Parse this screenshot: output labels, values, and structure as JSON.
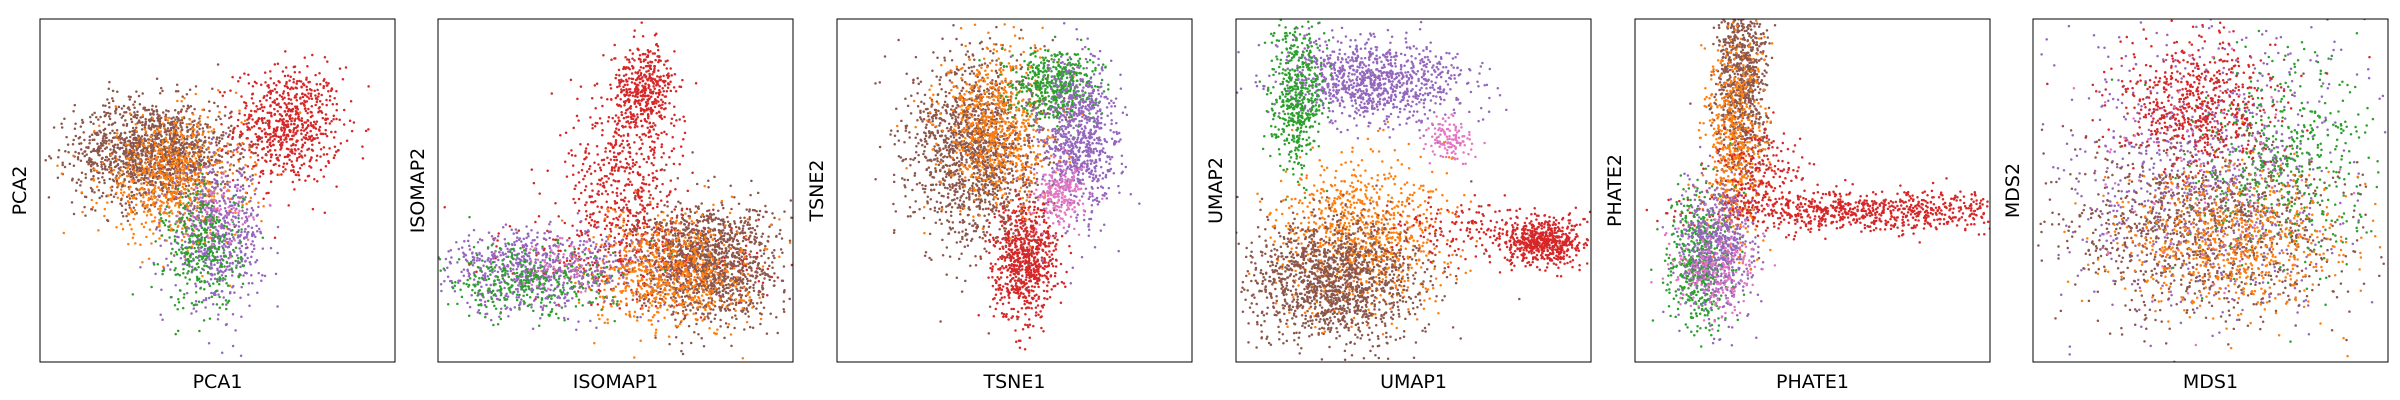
{
  "chart_data": [
    {
      "type": "scatter",
      "xlabel": "PCA1",
      "ylabel": "PCA2",
      "xlim": [
        0,
        10
      ],
      "ylim": [
        0,
        10
      ],
      "grid": false,
      "ticks": false,
      "series": [
        {
          "color": "#d62728",
          "clusters": [
            {
              "cx": 7.0,
              "cy": 6.9,
              "sx": 0.75,
              "sy": 0.85,
              "n": 700
            }
          ]
        },
        {
          "color": "#8c564b",
          "clusters": [
            {
              "cx": 3.2,
              "cy": 6.1,
              "sx": 1.1,
              "sy": 0.75,
              "n": 1500
            }
          ]
        },
        {
          "color": "#ff7f0e",
          "clusters": [
            {
              "cx": 3.7,
              "cy": 5.3,
              "sx": 1.0,
              "sy": 0.9,
              "n": 700
            }
          ]
        },
        {
          "color": "#9467bd",
          "clusters": [
            {
              "cx": 5.0,
              "cy": 3.7,
              "sx": 0.65,
              "sy": 1.0,
              "n": 600
            }
          ]
        },
        {
          "color": "#2ca02c",
          "clusters": [
            {
              "cx": 4.6,
              "cy": 3.3,
              "sx": 0.55,
              "sy": 0.9,
              "n": 350
            }
          ]
        },
        {
          "color": "#e377c2",
          "clusters": [
            {
              "cx": 5.0,
              "cy": 4.3,
              "sx": 0.5,
              "sy": 0.5,
              "n": 70
            }
          ]
        }
      ]
    },
    {
      "type": "scatter",
      "xlabel": "ISOMAP1",
      "ylabel": "ISOMAP2",
      "xlim": [
        0,
        10
      ],
      "ylim": [
        0,
        10
      ],
      "grid": false,
      "ticks": false,
      "series": [
        {
          "color": "#d62728",
          "clusters": [
            {
              "cx": 5.8,
              "cy": 7.9,
              "sx": 0.45,
              "sy": 0.65,
              "n": 450
            },
            {
              "cx": 5.2,
              "cy": 5.2,
              "sx": 0.8,
              "sy": 1.3,
              "n": 500
            },
            {
              "cx": 6.0,
              "cy": 3.0,
              "sx": 1.8,
              "sy": 0.7,
              "n": 300
            }
          ]
        },
        {
          "color": "#8c564b",
          "clusters": [
            {
              "cx": 7.6,
              "cy": 2.9,
              "sx": 1.0,
              "sy": 0.85,
              "n": 1400
            }
          ]
        },
        {
          "color": "#ff7f0e",
          "clusters": [
            {
              "cx": 6.5,
              "cy": 2.6,
              "sx": 1.1,
              "sy": 0.8,
              "n": 700
            }
          ]
        },
        {
          "color": "#9467bd",
          "clusters": [
            {
              "cx": 2.8,
              "cy": 2.7,
              "sx": 1.4,
              "sy": 0.6,
              "n": 700
            }
          ]
        },
        {
          "color": "#2ca02c",
          "clusters": [
            {
              "cx": 2.4,
              "cy": 2.3,
              "sx": 1.3,
              "sy": 0.5,
              "n": 350
            }
          ]
        },
        {
          "color": "#e377c2",
          "clusters": [
            {
              "cx": 3.5,
              "cy": 2.8,
              "sx": 0.6,
              "sy": 0.4,
              "n": 60
            }
          ]
        }
      ]
    },
    {
      "type": "scatter",
      "xlabel": "TSNE1",
      "ylabel": "TSNE2",
      "xlim": [
        0,
        10
      ],
      "ylim": [
        0,
        10
      ],
      "grid": false,
      "ticks": false,
      "series": [
        {
          "color": "#d62728",
          "clusters": [
            {
              "cx": 5.3,
              "cy": 3.0,
              "sx": 0.45,
              "sy": 0.85,
              "n": 800
            }
          ]
        },
        {
          "color": "#8c564b",
          "clusters": [
            {
              "cx": 3.9,
              "cy": 6.2,
              "sx": 0.9,
              "sy": 1.35,
              "n": 1500
            }
          ]
        },
        {
          "color": "#ff7f0e",
          "clusters": [
            {
              "cx": 4.5,
              "cy": 6.8,
              "sx": 0.8,
              "sy": 1.1,
              "n": 700
            }
          ]
        },
        {
          "color": "#2ca02c",
          "clusters": [
            {
              "cx": 6.2,
              "cy": 8.1,
              "sx": 0.6,
              "sy": 0.5,
              "n": 500
            }
          ]
        },
        {
          "color": "#9467bd",
          "clusters": [
            {
              "cx": 6.8,
              "cy": 6.4,
              "sx": 0.55,
              "sy": 1.2,
              "n": 800
            }
          ]
        },
        {
          "color": "#e377c2",
          "clusters": [
            {
              "cx": 6.3,
              "cy": 4.9,
              "sx": 0.35,
              "sy": 0.45,
              "n": 220
            }
          ]
        }
      ]
    },
    {
      "type": "scatter",
      "xlabel": "UMAP1",
      "ylabel": "UMAP2",
      "xlim": [
        0,
        10
      ],
      "ylim": [
        0,
        10
      ],
      "grid": false,
      "ticks": false,
      "series": [
        {
          "color": "#9467bd",
          "clusters": [
            {
              "cx": 3.9,
              "cy": 8.2,
              "sx": 1.35,
              "sy": 0.6,
              "n": 1000
            }
          ]
        },
        {
          "color": "#2ca02c",
          "clusters": [
            {
              "cx": 1.7,
              "cy": 7.7,
              "sx": 0.35,
              "sy": 1.0,
              "n": 500
            }
          ]
        },
        {
          "color": "#e377c2",
          "clusters": [
            {
              "cx": 6.0,
              "cy": 6.5,
              "sx": 0.35,
              "sy": 0.35,
              "n": 120
            }
          ]
        },
        {
          "color": "#ff7f0e",
          "clusters": [
            {
              "cx": 3.6,
              "cy": 3.7,
              "sx": 1.2,
              "sy": 1.1,
              "n": 900
            }
          ]
        },
        {
          "color": "#8c564b",
          "clusters": [
            {
              "cx": 2.7,
              "cy": 2.4,
              "sx": 1.25,
              "sy": 0.9,
              "n": 1500
            }
          ]
        },
        {
          "color": "#d62728",
          "clusters": [
            {
              "cx": 8.6,
              "cy": 3.5,
              "sx": 0.55,
              "sy": 0.35,
              "n": 600
            },
            {
              "cx": 6.5,
              "cy": 3.8,
              "sx": 1.2,
              "sy": 0.5,
              "n": 150
            }
          ]
        }
      ]
    },
    {
      "type": "scatter",
      "xlabel": "PHATE1",
      "ylabel": "PHATE2",
      "xlim": [
        0,
        10
      ],
      "ylim": [
        0,
        10
      ],
      "grid": false,
      "ticks": false,
      "series": [
        {
          "color": "#8c564b",
          "clusters": [
            {
              "cx": 3.0,
              "cy": 8.0,
              "sx": 0.35,
              "sy": 1.5,
              "n": 900
            }
          ]
        },
        {
          "color": "#ff7f0e",
          "clusters": [
            {
              "cx": 2.8,
              "cy": 6.3,
              "sx": 0.4,
              "sy": 1.6,
              "n": 600
            }
          ]
        },
        {
          "color": "#d62728",
          "clusters": [
            {
              "cx": 6.5,
              "cy": 4.4,
              "sx": 2.2,
              "sy": 0.3,
              "n": 800
            },
            {
              "cx": 3.5,
              "cy": 5.5,
              "sx": 0.7,
              "sy": 0.6,
              "n": 200
            }
          ]
        },
        {
          "color": "#2ca02c",
          "clusters": [
            {
              "cx": 1.8,
              "cy": 3.0,
              "sx": 0.45,
              "sy": 1.0,
              "n": 500
            }
          ]
        },
        {
          "color": "#9467bd",
          "clusters": [
            {
              "cx": 2.3,
              "cy": 3.3,
              "sx": 0.5,
              "sy": 0.9,
              "n": 600
            }
          ]
        },
        {
          "color": "#e377c2",
          "clusters": [
            {
              "cx": 2.2,
              "cy": 2.7,
              "sx": 0.55,
              "sy": 0.75,
              "n": 220
            }
          ]
        }
      ]
    },
    {
      "type": "scatter",
      "xlabel": "MDS1",
      "ylabel": "MDS2",
      "xlim": [
        0,
        10
      ],
      "ylim": [
        0,
        10
      ],
      "grid": false,
      "ticks": false,
      "series": [
        {
          "color": "#9467bd",
          "clusters": [
            {
              "cx": 5.0,
              "cy": 5.5,
              "sx": 2.0,
              "sy": 2.0,
              "n": 900
            }
          ]
        },
        {
          "color": "#2ca02c",
          "clusters": [
            {
              "cx": 7.0,
              "cy": 5.8,
              "sx": 1.3,
              "sy": 1.5,
              "n": 500
            }
          ]
        },
        {
          "color": "#8c564b",
          "clusters": [
            {
              "cx": 4.8,
              "cy": 3.9,
              "sx": 2.0,
              "sy": 1.4,
              "n": 1100
            }
          ]
        },
        {
          "color": "#ff7f0e",
          "clusters": [
            {
              "cx": 5.6,
              "cy": 3.4,
              "sx": 1.6,
              "sy": 1.0,
              "n": 700
            }
          ]
        },
        {
          "color": "#d62728",
          "clusters": [
            {
              "cx": 4.7,
              "cy": 7.5,
              "sx": 1.1,
              "sy": 0.9,
              "n": 600
            }
          ]
        },
        {
          "color": "#e377c2",
          "clusters": [
            {
              "cx": 5.0,
              "cy": 5.0,
              "sx": 1.8,
              "sy": 1.8,
              "n": 100
            }
          ]
        }
      ]
    }
  ]
}
